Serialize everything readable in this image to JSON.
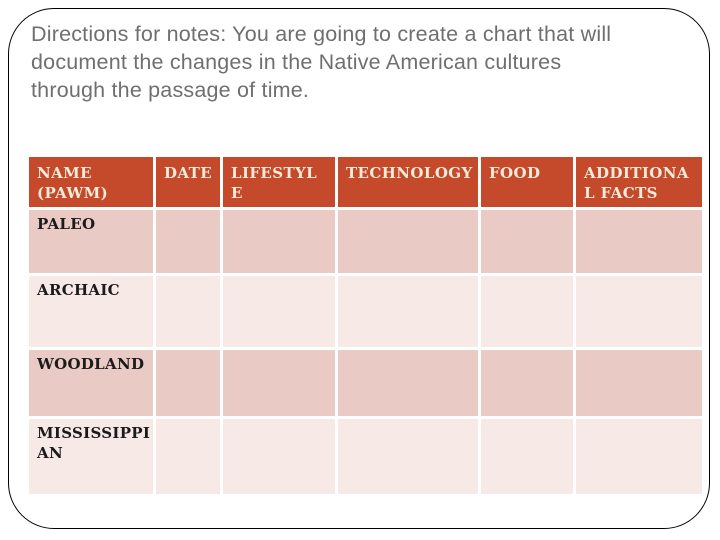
{
  "slide": {
    "title": "Directions for notes: You are going to create a chart that will\ndocument the changes in the Native American cultures\nthrough the passage of time."
  },
  "table": {
    "columns": [
      {
        "label": "NAME\n(PAWM)"
      },
      {
        "label": "DATE"
      },
      {
        "label": "LIFESTYL\nE"
      },
      {
        "label": "TECHNOLOGY"
      },
      {
        "label": "FOOD"
      },
      {
        "label": "ADDITIONA\nL FACTS"
      }
    ],
    "rows": [
      {
        "label": "PALEO",
        "cells": [
          "",
          "",
          "",
          "",
          ""
        ]
      },
      {
        "label": "ARCHAIC",
        "cells": [
          "",
          "",
          "",
          "",
          ""
        ]
      },
      {
        "label": "WOODLAND",
        "cells": [
          "",
          "",
          "",
          "",
          ""
        ]
      },
      {
        "label": "MISSISSIPPI\nAN",
        "cells": [
          "",
          "",
          "",
          "",
          ""
        ]
      }
    ]
  },
  "colors": {
    "header_bg": "#C5492B",
    "header_text": "#F2EBD8",
    "row_dark": "#E9CAC4",
    "row_light": "#F7E9E6",
    "title_text": "#6F6F6F"
  }
}
